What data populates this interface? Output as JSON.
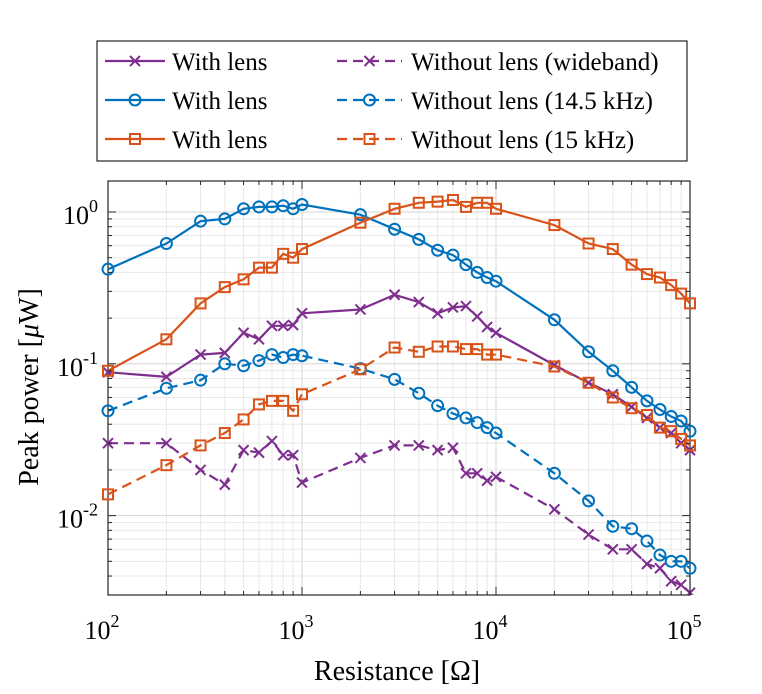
{
  "chart_data": {
    "type": "line",
    "title": "",
    "xlabel_text": "Resistance [",
    "xlabel_unit": "Ω",
    "xlabel_close": "]",
    "ylabel_text": "Peak power [",
    "ylabel_unit": "μ",
    "ylabel_unit2": "W",
    "ylabel_close": "]",
    "xscale": "log",
    "yscale": "log",
    "xlim": [
      100,
      100000
    ],
    "ylim": [
      0.003,
      1.6
    ],
    "grid": true,
    "legend_position": "top",
    "x_tick_labels": [
      {
        "base": "10",
        "exp": "2",
        "value": 100
      },
      {
        "base": "10",
        "exp": "3",
        "value": 1000
      },
      {
        "base": "10",
        "exp": "4",
        "value": 10000
      },
      {
        "base": "10",
        "exp": "5",
        "value": 100000
      }
    ],
    "y_tick_labels": [
      {
        "base": "10",
        "exp": "-2",
        "value": 0.01
      },
      {
        "base": "10",
        "exp": "-1",
        "value": 0.1
      },
      {
        "base": "10",
        "exp": "0",
        "value": 1
      }
    ],
    "x": [
      100,
      200,
      300,
      400,
      500,
      600,
      700,
      800,
      900,
      1000,
      2000,
      3000,
      4000,
      5000,
      6000,
      7000,
      8000,
      9000,
      10000,
      20000,
      30000,
      40000,
      50000,
      60000,
      70000,
      80000,
      90000,
      100000
    ],
    "series": [
      {
        "name": "With lens",
        "color": "#7E2F8E",
        "dash": false,
        "marker": "x",
        "values": [
          0.088,
          0.082,
          0.115,
          0.118,
          0.16,
          0.145,
          0.178,
          0.178,
          0.18,
          0.215,
          0.228,
          0.285,
          0.255,
          0.215,
          0.235,
          0.24,
          0.205,
          0.175,
          0.16,
          0.098,
          0.075,
          0.063,
          0.052,
          0.044,
          0.038,
          0.035,
          0.03,
          0.027
        ]
      },
      {
        "name": "Without lens (wideband)",
        "color": "#7E2F8E",
        "dash": true,
        "marker": "x",
        "values": [
          0.03,
          0.03,
          0.02,
          0.016,
          0.027,
          0.026,
          0.031,
          0.025,
          0.025,
          0.0165,
          0.024,
          0.029,
          0.029,
          0.027,
          0.028,
          0.019,
          0.019,
          0.017,
          0.018,
          0.011,
          0.0075,
          0.006,
          0.006,
          0.0048,
          0.0045,
          0.0037,
          0.0035,
          0.0031
        ]
      },
      {
        "name": "With lens",
        "color": "#0072BD",
        "dash": false,
        "marker": "o",
        "values": [
          0.42,
          0.62,
          0.87,
          0.9,
          1.05,
          1.08,
          1.08,
          1.1,
          1.05,
          1.12,
          0.96,
          0.77,
          0.66,
          0.56,
          0.52,
          0.45,
          0.4,
          0.37,
          0.35,
          0.195,
          0.12,
          0.09,
          0.07,
          0.057,
          0.05,
          0.045,
          0.042,
          0.036
        ]
      },
      {
        "name": "Without lens (14.5 kHz)",
        "color": "#0072BD",
        "dash": true,
        "marker": "o",
        "values": [
          0.049,
          0.069,
          0.078,
          0.1,
          0.097,
          0.105,
          0.115,
          0.11,
          0.115,
          0.113,
          0.093,
          0.079,
          0.064,
          0.053,
          0.047,
          0.044,
          0.041,
          0.038,
          0.035,
          0.019,
          0.0125,
          0.0085,
          0.0082,
          0.0068,
          0.0055,
          0.005,
          0.005,
          0.0045
        ]
      },
      {
        "name": "With lens",
        "color": "#D95319",
        "dash": false,
        "marker": "s",
        "values": [
          0.09,
          0.145,
          0.25,
          0.32,
          0.36,
          0.43,
          0.43,
          0.53,
          0.5,
          0.57,
          0.85,
          1.05,
          1.15,
          1.17,
          1.2,
          1.08,
          1.15,
          1.15,
          1.05,
          0.82,
          0.62,
          0.57,
          0.45,
          0.39,
          0.37,
          0.33,
          0.29,
          0.25
        ]
      },
      {
        "name": "Without lens (15 kHz)",
        "color": "#D95319",
        "dash": true,
        "marker": "s",
        "values": [
          0.0138,
          0.0215,
          0.029,
          0.035,
          0.043,
          0.054,
          0.057,
          0.057,
          0.049,
          0.063,
          0.092,
          0.128,
          0.12,
          0.13,
          0.13,
          0.125,
          0.125,
          0.115,
          0.115,
          0.096,
          0.075,
          0.06,
          0.051,
          0.046,
          0.038,
          0.036,
          0.032,
          0.029
        ]
      }
    ],
    "legend": [
      [
        "With lens",
        "Without lens (wideband)"
      ],
      [
        "With lens",
        "Without lens (14.5 kHz)"
      ],
      [
        "With lens",
        "Without lens (15 kHz)"
      ]
    ]
  }
}
